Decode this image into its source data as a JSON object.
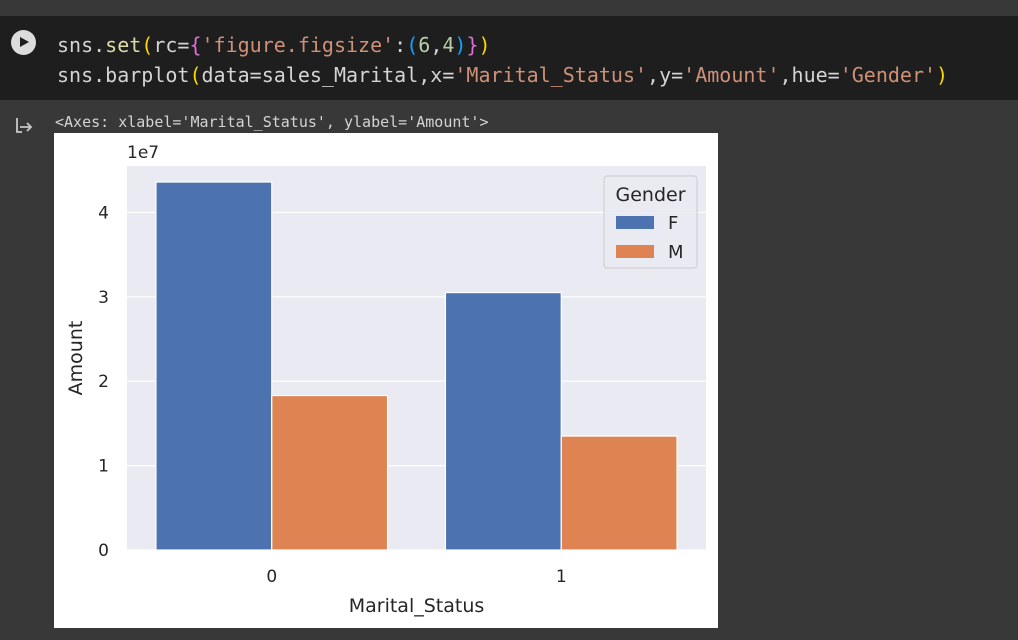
{
  "code_cell": {
    "line1": {
      "prefix": "sns.",
      "fn": "set",
      "p1": "(",
      "arg": "rc=",
      "b1": "{",
      "key": "'figure.figsize'",
      "colon": ":",
      "p2": "(",
      "n1": "6",
      "comma": ",",
      "n2": "4",
      "p3": ")",
      "b2": "}",
      "p4": ")"
    },
    "line2": {
      "prefix": "sns.barplot",
      "p1": "(",
      "a1": "data=sales_Marital,x=",
      "s1": "'Marital_Status'",
      "a2": ",y=",
      "s2": "'Amount'",
      "a3": ",hue=",
      "s3": "'Gender'",
      "p2": ")"
    }
  },
  "output": {
    "axes_repr": "<Axes: xlabel='Marital_Status', ylabel='Amount'>"
  },
  "colors": {
    "female": "#4c72b0",
    "male": "#dd8452",
    "plot_bg": "#eaeaf2",
    "grid": "#ffffff"
  },
  "chart_data": {
    "type": "bar",
    "categories": [
      "0",
      "1"
    ],
    "series": [
      {
        "name": "F",
        "values": [
          43600000,
          30500000
        ]
      },
      {
        "name": "M",
        "values": [
          18300000,
          13500000
        ]
      }
    ],
    "xlabel": "Marital_Status",
    "ylabel": "Amount",
    "y_offset_label": "1e7",
    "ylim": [
      0,
      45500000
    ],
    "yticks": [
      0,
      10000000,
      20000000,
      30000000,
      40000000
    ],
    "ytick_labels": [
      "0",
      "1",
      "2",
      "3",
      "4"
    ],
    "legend_title": "Gender",
    "legend_placement": "top-right",
    "grid": true
  }
}
